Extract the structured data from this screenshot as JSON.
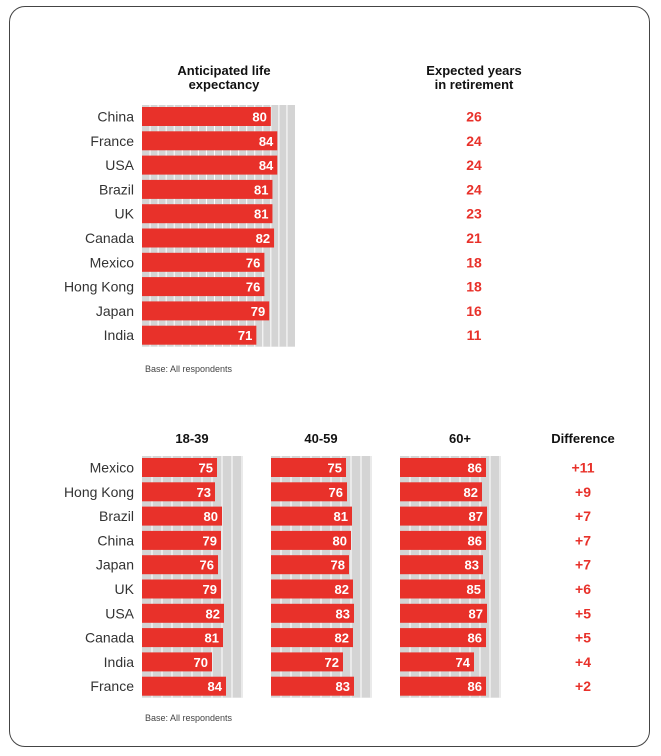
{
  "colors": {
    "bar": "#e8312a",
    "track": "#d4d4d4",
    "gridline": "#ffffff",
    "highlight_text": "#e8312a",
    "bar_label": "#ffffff",
    "category_text": "#333333"
  },
  "chart_data": [
    {
      "type": "bar",
      "orientation": "horizontal",
      "categories": [
        "China",
        "France",
        "USA",
        "Brazil",
        "UK",
        "Canada",
        "Mexico",
        "Hong Kong",
        "Japan",
        "India"
      ],
      "series": [
        {
          "name": "Anticipated life expectancy",
          "values": [
            80,
            84,
            84,
            81,
            81,
            82,
            76,
            76,
            79,
            71
          ]
        }
      ],
      "columns": [
        {
          "title": "Expected years in retirement",
          "values": [
            "26",
            "24",
            "24",
            "24",
            "23",
            "21",
            "18",
            "18",
            "16",
            "11"
          ]
        }
      ],
      "note": "Base: All respondents"
    },
    {
      "type": "bar",
      "orientation": "horizontal",
      "categories": [
        "Mexico",
        "Hong Kong",
        "Brazil",
        "China",
        "Japan",
        "UK",
        "USA",
        "Canada",
        "India",
        "France"
      ],
      "series": [
        {
          "name": "18-39",
          "values": [
            75,
            73,
            80,
            79,
            76,
            79,
            82,
            81,
            70,
            84
          ]
        },
        {
          "name": "40-59",
          "values": [
            75,
            76,
            81,
            80,
            78,
            82,
            83,
            82,
            72,
            83
          ]
        },
        {
          "name": "60+",
          "values": [
            86,
            82,
            87,
            86,
            83,
            85,
            87,
            86,
            74,
            86
          ]
        }
      ],
      "columns": [
        {
          "title": "Difference",
          "values": [
            "+11",
            "+9",
            "+7",
            "+7",
            "+7",
            "+6",
            "+5",
            "+5",
            "+4",
            "+2"
          ]
        }
      ],
      "note": "Base: All respondents"
    }
  ]
}
